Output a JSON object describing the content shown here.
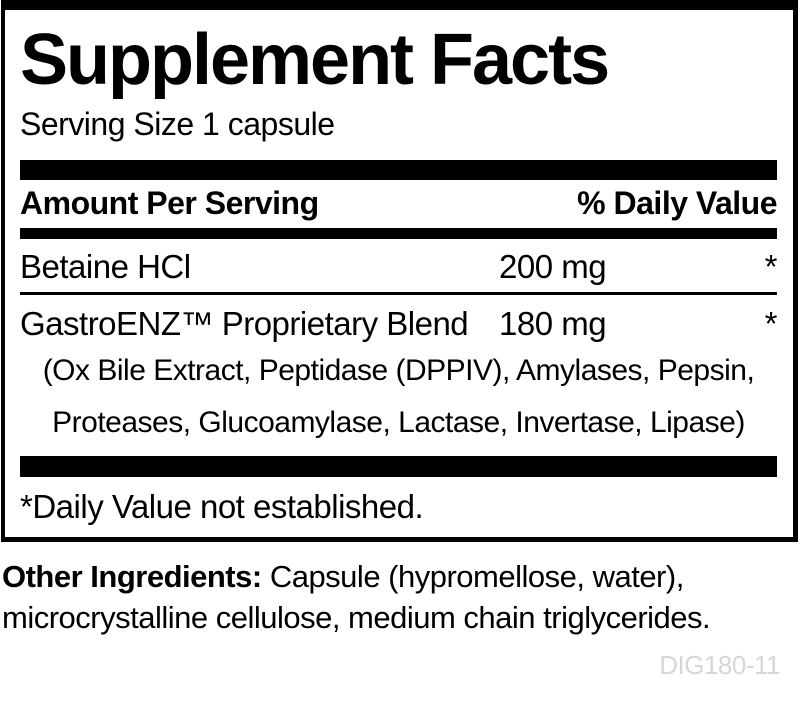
{
  "label": {
    "title": "Supplement Facts",
    "serving_size": "Serving Size 1 capsule",
    "header": {
      "amount_column": "Amount Per Serving",
      "dv_column": "% Daily Value"
    },
    "rows": [
      {
        "name": "Betaine HCl",
        "amount": "200 mg",
        "dv": "*"
      },
      {
        "name": "GastroENZ™ Proprietary Blend",
        "amount": "180 mg",
        "dv": "*"
      }
    ],
    "blend": {
      "line1": "(Ox Bile Extract, Peptidase (DPPIV), Amylases, Pepsin,",
      "line2": "Proteases, Glucoamylase, Lactase, Invertase, Lipase)"
    },
    "footnote": "*Daily Value not established."
  },
  "other_ingredients": {
    "label": "Other Ingredients:",
    "text": " Capsule (hypromellose, water), microcrystalline cellulose, medium chain triglycerides."
  },
  "product_code": "DIG180-11",
  "colors": {
    "ink": "#000000",
    "background": "#ffffff",
    "product_code_gray": "#d6d6d6"
  }
}
